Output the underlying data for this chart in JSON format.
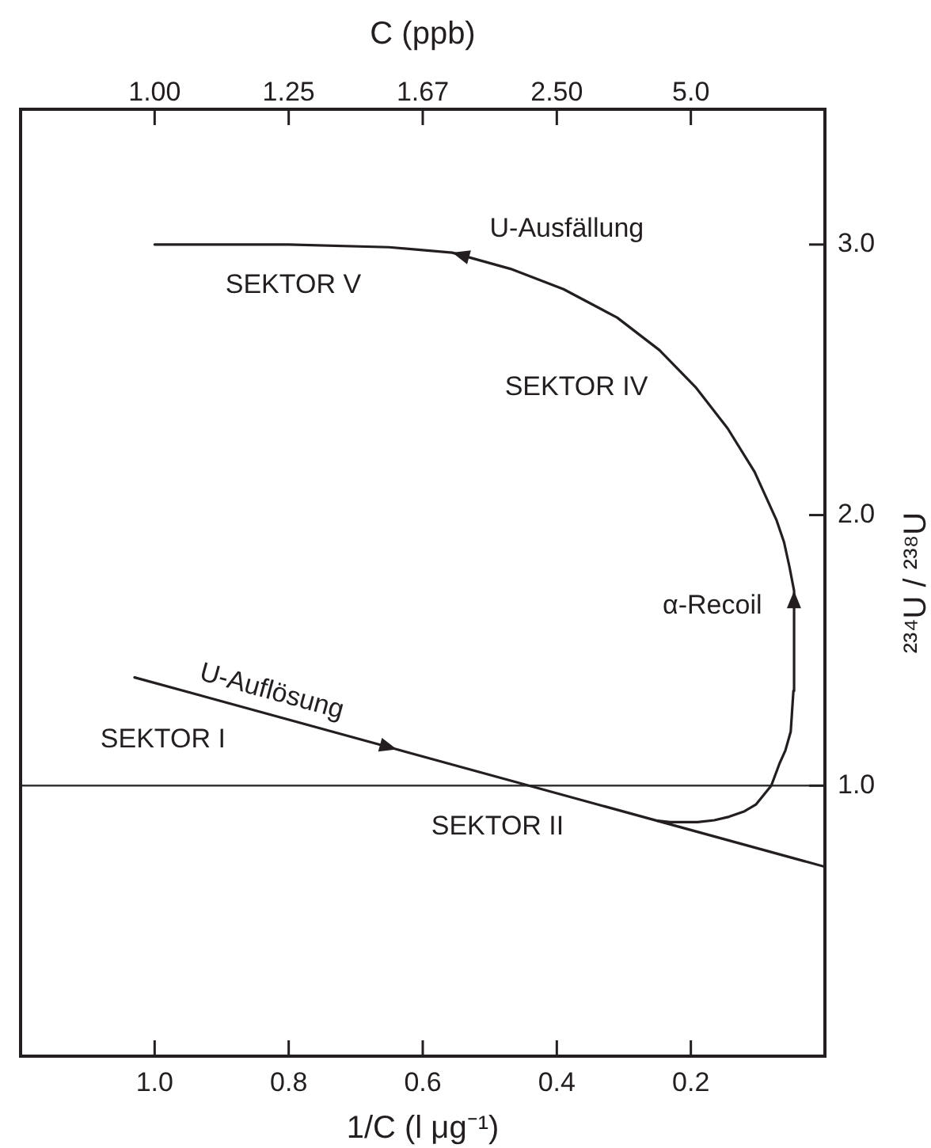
{
  "chart_data": {
    "type": "line",
    "xlabel": "1/C (l μg⁻¹)",
    "x2label": "C (ppb)",
    "ylabel": "²³⁴U / ²³⁸U",
    "xlim": [
      1.2,
      0
    ],
    "xticks": [
      {
        "value": 1,
        "label": "1.0"
      },
      0.8,
      0.6,
      0.4,
      0.2
    ],
    "ylim": [
      0,
      3.5
    ],
    "yticks": [
      {
        "value": 1,
        "label": "1.0"
      },
      {
        "value": 2,
        "label": "2.0"
      },
      {
        "value": 3,
        "label": "3.0"
      }
    ],
    "marker": "none",
    "ref_lines": [
      {
        "axis": "y",
        "value": 1,
        "color": "#333333"
      }
    ],
    "series": [
      {
        "name": "U-Auflösung",
        "color": "#231f20",
        "x": [
          1.03,
          0
        ],
        "values": [
          1.4,
          0.7
        ]
      },
      {
        "color": "#231f20",
        "x": [
          0.25,
          0.231,
          0.19,
          0.165,
          0.143,
          0.12,
          0.103,
          0.08,
          0.068,
          0.059,
          0.051,
          0.047,
          0.046,
          0.053,
          0.061,
          0.072,
          0.105,
          0.145,
          0.192,
          0.247,
          0.31,
          0.39,
          0.469,
          0.556,
          0.65,
          0.8,
          1.0
        ],
        "values": [
          0.87,
          0.865,
          0.865,
          0.872,
          0.885,
          0.905,
          0.93,
          1.0,
          1.08,
          1.13,
          1.2,
          1.35,
          1.72,
          1.81,
          1.9,
          1.98,
          2.16,
          2.32,
          2.47,
          2.61,
          2.73,
          2.835,
          2.91,
          2.97,
          2.99,
          3.0,
          3.0
        ]
      }
    ],
    "annotations": [
      "1.00",
      "1.25",
      "1.67",
      "2.50",
      "5.0",
      "U-Ausfällung",
      "SEKTOR V",
      "SEKTOR IV",
      "α-Recoil",
      "SEKTOR I",
      "SEKTOR II"
    ]
  }
}
